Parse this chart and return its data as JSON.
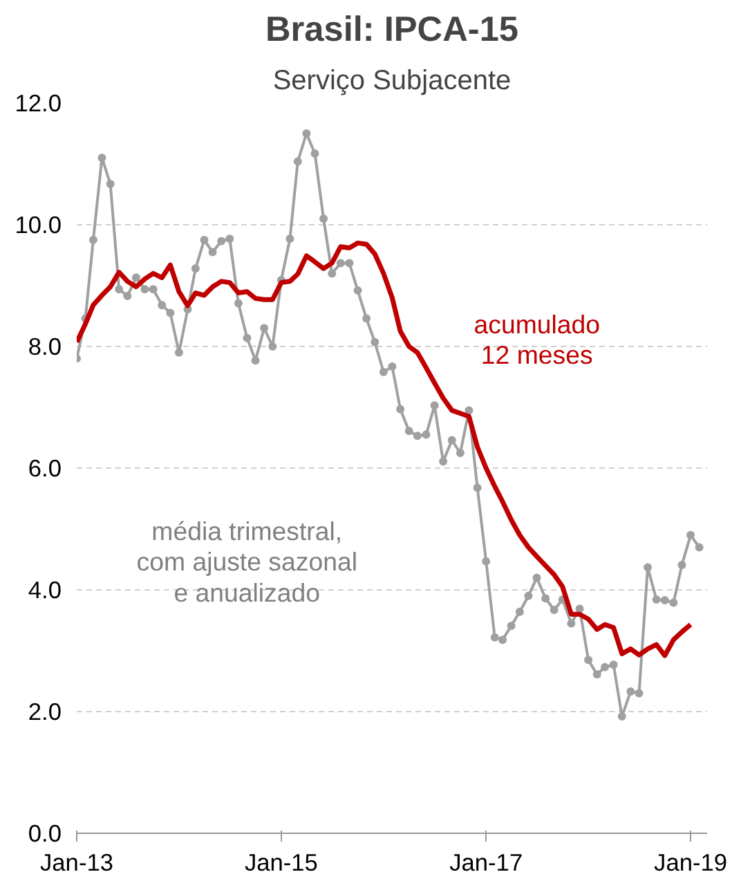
{
  "chart_data": {
    "type": "line",
    "title": "Brasil: IPCA-15",
    "subtitle": "Serviço Subjacente",
    "x": [
      "2013-01",
      "2013-02",
      "2013-03",
      "2013-04",
      "2013-05",
      "2013-06",
      "2013-07",
      "2013-08",
      "2013-09",
      "2013-10",
      "2013-11",
      "2013-12",
      "2014-01",
      "2014-02",
      "2014-03",
      "2014-04",
      "2014-05",
      "2014-06",
      "2014-07",
      "2014-08",
      "2014-09",
      "2014-10",
      "2014-11",
      "2014-12",
      "2015-01",
      "2015-02",
      "2015-03",
      "2015-04",
      "2015-05",
      "2015-06",
      "2015-07",
      "2015-08",
      "2015-09",
      "2015-10",
      "2015-11",
      "2015-12",
      "2016-01",
      "2016-02",
      "2016-03",
      "2016-04",
      "2016-05",
      "2016-06",
      "2016-07",
      "2016-08",
      "2016-09",
      "2016-10",
      "2016-11",
      "2016-12",
      "2017-01",
      "2017-02",
      "2017-03",
      "2017-04",
      "2017-05",
      "2017-06",
      "2017-07",
      "2017-08",
      "2017-09",
      "2017-10",
      "2017-11",
      "2017-12",
      "2018-01",
      "2018-02",
      "2018-03",
      "2018-04",
      "2018-05",
      "2018-06",
      "2018-07",
      "2018-08",
      "2018-09",
      "2018-10",
      "2018-11",
      "2018-12",
      "2019-01",
      "2019-02"
    ],
    "series": [
      {
        "name": "média trimestral,\ncom ajuste sazonal\ne anualizado",
        "color": "#a0a0a0",
        "marker": "circle",
        "values": [
          7.8,
          8.46,
          9.75,
          11.1,
          10.67,
          8.94,
          8.83,
          9.13,
          8.94,
          8.94,
          8.68,
          8.55,
          7.9,
          8.61,
          9.28,
          9.75,
          9.55,
          9.73,
          9.77,
          8.71,
          8.14,
          7.77,
          8.3,
          8.0,
          9.09,
          9.77,
          11.04,
          11.5,
          11.17,
          10.1,
          9.2,
          9.37,
          9.37,
          8.92,
          8.46,
          8.07,
          7.58,
          7.67,
          6.97,
          6.61,
          6.53,
          6.55,
          7.03,
          6.11,
          6.46,
          6.25,
          6.95,
          5.68,
          4.47,
          3.22,
          3.18,
          3.41,
          3.64,
          3.9,
          4.2,
          3.86,
          3.67,
          3.84,
          3.45,
          3.69,
          2.85,
          2.61,
          2.73,
          2.77,
          1.92,
          2.33,
          2.3,
          4.37,
          3.84,
          3.83,
          3.79,
          4.41,
          4.9,
          4.7
        ]
      },
      {
        "name": "acumulado\n12 meses",
        "color": "#c00000",
        "marker": "none",
        "values": [
          8.07,
          8.37,
          8.68,
          8.84,
          8.98,
          9.22,
          9.07,
          8.98,
          9.11,
          9.2,
          9.13,
          9.34,
          8.9,
          8.67,
          8.88,
          8.84,
          8.98,
          9.07,
          9.05,
          8.88,
          8.9,
          8.79,
          8.77,
          8.77,
          9.05,
          9.07,
          9.19,
          9.49,
          9.39,
          9.28,
          9.37,
          9.64,
          9.62,
          9.7,
          9.68,
          9.52,
          9.2,
          8.8,
          8.25,
          8.0,
          7.9,
          7.65,
          7.4,
          7.15,
          6.95,
          6.9,
          6.85,
          6.35,
          6.0,
          5.7,
          5.45,
          5.15,
          4.9,
          4.7,
          4.55,
          4.4,
          4.25,
          4.05,
          3.6,
          3.6,
          3.52,
          3.35,
          3.43,
          3.38,
          2.95,
          3.03,
          2.93,
          3.03,
          3.1,
          2.92,
          3.18,
          3.31,
          3.43,
          null
        ]
      }
    ],
    "xlim": [
      "2013-01",
      "2019-03"
    ],
    "xticks": [
      {
        "value": "2013-01",
        "label": "Jan-13"
      },
      {
        "value": "2015-01",
        "label": "Jan-15"
      },
      {
        "value": "2017-01",
        "label": "Jan-17"
      },
      {
        "value": "2019-01",
        "label": "Jan-19"
      }
    ],
    "ylim": [
      0,
      12
    ],
    "yticks": [
      {
        "value": 0,
        "label": "0.0"
      },
      {
        "value": 2,
        "label": "2.0"
      },
      {
        "value": 4,
        "label": "4.0"
      },
      {
        "value": 6,
        "label": "6.0"
      },
      {
        "value": 8,
        "label": "8.0"
      },
      {
        "value": 10,
        "label": "10.0"
      },
      {
        "value": 12,
        "label": "12.0"
      }
    ],
    "grid": "y",
    "legend": false,
    "line_style": "solid"
  }
}
